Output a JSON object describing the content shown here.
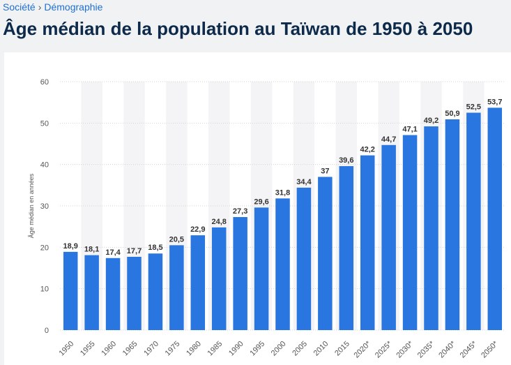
{
  "breadcrumb": {
    "items": [
      "Société",
      "Démographie"
    ],
    "separator": "›"
  },
  "page": {
    "title": "Âge médian de la population au Taïwan de 1950 à 2050"
  },
  "colors": {
    "bar": "#2a76e0",
    "band": "#f4f4f6",
    "grid": "#d4d4d4",
    "breadcrumb_link": "#1f6fd1",
    "title": "#0e2a4a"
  },
  "chart_data": {
    "type": "bar",
    "ylabel": "Âge médian en années",
    "xlabel": "",
    "ylim": [
      0,
      60
    ],
    "yticks": [
      0,
      10,
      20,
      30,
      40,
      50,
      60
    ],
    "grid": true,
    "categories": [
      "1950",
      "1955",
      "1960",
      "1965",
      "1970",
      "1975",
      "1980",
      "1985",
      "1990",
      "1995",
      "2000",
      "2005",
      "2010",
      "2015",
      "2020*",
      "2025*",
      "2030*",
      "2035*",
      "2040*",
      "2045*",
      "2050*"
    ],
    "values": [
      18.9,
      18.1,
      17.4,
      17.7,
      18.5,
      20.5,
      22.9,
      24.8,
      27.3,
      29.6,
      31.8,
      34.4,
      37,
      39.6,
      42.2,
      44.7,
      47.1,
      49.2,
      50.9,
      52.5,
      53.7
    ],
    "data_labels": [
      "18,9",
      "18,1",
      "17,4",
      "17,7",
      "18,5",
      "20,5",
      "22,9",
      "24,8",
      "27,3",
      "29,6",
      "31,8",
      "34,4",
      "37",
      "39,6",
      "42,2",
      "44,7",
      "47,1",
      "49,2",
      "50,9",
      "52,5",
      "53,7"
    ]
  }
}
